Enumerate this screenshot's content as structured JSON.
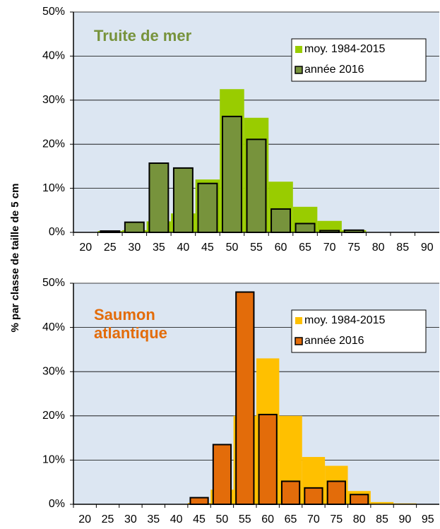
{
  "chart_data": [
    {
      "type": "bar",
      "title": "Truite de mer",
      "title_color": "#77933c",
      "ylabel": "% par classe de taille de 5 cm",
      "categories": [
        "20",
        "25",
        "30",
        "35",
        "40",
        "45",
        "50",
        "55",
        "60",
        "65",
        "70",
        "75",
        "80",
        "85",
        "90"
      ],
      "series": [
        {
          "name": "moy. 1984-2015",
          "color": "#99cc00",
          "values": [
            0,
            0.3,
            0.5,
            2.5,
            4.3,
            12,
            32.5,
            26,
            11.5,
            5.8,
            2.6,
            0.5,
            0,
            0,
            0
          ]
        },
        {
          "name": "année 2016",
          "color": "#77933c",
          "values": [
            0,
            0.3,
            2.3,
            15.7,
            14.6,
            11.1,
            26.3,
            21.1,
            5.3,
            2.0,
            0.4,
            0.5,
            0,
            0,
            0
          ]
        }
      ],
      "ylim": [
        0,
        50
      ],
      "yticks": [
        {
          "value": 0,
          "label": "0%"
        },
        {
          "value": 10,
          "label": "10%"
        },
        {
          "value": 20,
          "label": "20%"
        },
        {
          "value": 30,
          "label": "30%"
        },
        {
          "value": 40,
          "label": "40%"
        },
        {
          "value": 50,
          "label": "50%"
        }
      ],
      "grid": true,
      "legend": "upper right"
    },
    {
      "type": "bar",
      "title": "Saumon atlantique",
      "title_color": "#e36c0a",
      "categories": [
        "20",
        "25",
        "30",
        "35",
        "40",
        "45",
        "50",
        "55",
        "60",
        "65",
        "70",
        "75",
        "80",
        "85",
        "90",
        "95"
      ],
      "series": [
        {
          "name": "moy. 1984-2015",
          "color": "#ffc000",
          "values": [
            0,
            0,
            0,
            0,
            0,
            0.3,
            3.3,
            20,
            33,
            20,
            10.7,
            8.7,
            3,
            0.5,
            0.2,
            0
          ]
        },
        {
          "name": "année 2016",
          "color": "#e36c0a",
          "values": [
            0,
            0,
            0,
            0,
            0,
            1.5,
            13.5,
            48,
            20.3,
            5.2,
            3.7,
            5.2,
            2.2,
            0,
            0,
            0
          ]
        }
      ],
      "ylim": [
        0,
        50
      ],
      "yticks": [
        {
          "value": 0,
          "label": "0%"
        },
        {
          "value": 10,
          "label": "10%"
        },
        {
          "value": 20,
          "label": "20%"
        },
        {
          "value": 30,
          "label": "30%"
        },
        {
          "value": 40,
          "label": "40%"
        },
        {
          "value": 50,
          "label": "50%"
        }
      ],
      "grid": true,
      "legend": "upper right"
    }
  ]
}
